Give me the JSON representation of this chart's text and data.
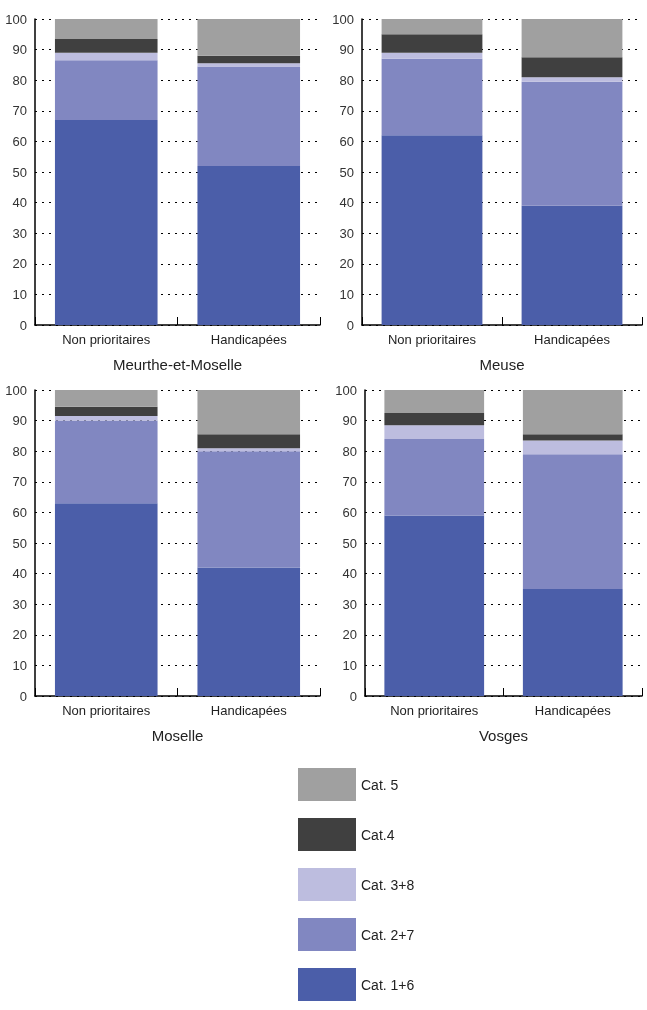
{
  "chart_data": [
    {
      "type": "bar",
      "stacked": true,
      "xlabel": "Meurthe-et-Moselle",
      "categories": [
        "Non prioritaires",
        "Handicapées"
      ],
      "ylim": [
        0,
        100
      ],
      "yticks": [
        0,
        10,
        20,
        30,
        40,
        50,
        60,
        70,
        80,
        90,
        100
      ],
      "grid": "y",
      "series": [
        {
          "color": "#4b5ea9",
          "values": [
            67,
            52
          ]
        },
        {
          "color": "#8187c1",
          "values": [
            19.5,
            32.5
          ]
        },
        {
          "color": "#bdbddf",
          "values": [
            2.5,
            1
          ]
        },
        {
          "color": "#404040",
          "values": [
            4.5,
            2.5
          ]
        },
        {
          "color": "#a0a0a0",
          "values": [
            6.5,
            12
          ]
        }
      ]
    },
    {
      "type": "bar",
      "stacked": true,
      "xlabel": "Meuse",
      "categories": [
        "Non prioritaires",
        "Handicapées"
      ],
      "ylim": [
        0,
        100
      ],
      "yticks": [
        0,
        10,
        20,
        30,
        40,
        50,
        60,
        70,
        80,
        90,
        100
      ],
      "grid": "y",
      "series": [
        {
          "color": "#4b5ea9",
          "values": [
            62,
            39
          ]
        },
        {
          "color": "#8187c1",
          "values": [
            25,
            40.5
          ]
        },
        {
          "color": "#bdbddf",
          "values": [
            2,
            1.5
          ]
        },
        {
          "color": "#404040",
          "values": [
            6,
            6.5
          ]
        },
        {
          "color": "#a0a0a0",
          "values": [
            5,
            12.5
          ]
        }
      ]
    },
    {
      "type": "bar",
      "stacked": true,
      "xlabel": "Moselle",
      "categories": [
        "Non prioritaires",
        "Handicapées"
      ],
      "ylim": [
        0,
        100
      ],
      "yticks": [
        0,
        10,
        20,
        30,
        40,
        50,
        60,
        70,
        80,
        90,
        100
      ],
      "grid": "y",
      "series": [
        {
          "color": "#4b5ea9",
          "values": [
            63,
            42
          ]
        },
        {
          "color": "#8187c1",
          "values": [
            27,
            38
          ]
        },
        {
          "color": "#bdbddf",
          "values": [
            1.5,
            1
          ]
        },
        {
          "color": "#404040",
          "values": [
            3,
            4.5
          ]
        },
        {
          "color": "#a0a0a0",
          "values": [
            5.5,
            14.5
          ]
        }
      ]
    },
    {
      "type": "bar",
      "stacked": true,
      "xlabel": "Vosges",
      "categories": [
        "Non prioritaires",
        "Handicapées"
      ],
      "ylim": [
        0,
        100
      ],
      "yticks": [
        0,
        10,
        20,
        30,
        40,
        50,
        60,
        70,
        80,
        90,
        100
      ],
      "grid": "y",
      "legend": "bottom",
      "series": [
        {
          "name": "Cat. 1+6",
          "color": "#4b5ea9",
          "values": [
            59,
            35
          ]
        },
        {
          "name": "Cat. 2+7",
          "color": "#8187c1",
          "values": [
            25,
            44
          ]
        },
        {
          "name": "Cat. 3+8",
          "color": "#bdbddf",
          "values": [
            4.5,
            4.5
          ]
        },
        {
          "name": "Cat.4",
          "color": "#404040",
          "values": [
            4,
            2
          ]
        },
        {
          "name": "Cat. 5",
          "color": "#a0a0a0",
          "values": [
            7.5,
            14.5
          ]
        }
      ]
    }
  ]
}
